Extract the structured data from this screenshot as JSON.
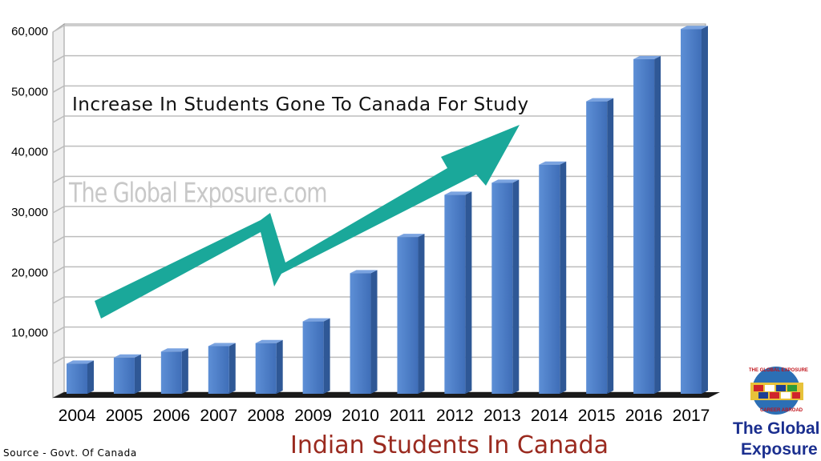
{
  "chart_data": {
    "type": "bar",
    "categories": [
      "2004",
      "2005",
      "2006",
      "2007",
      "2008",
      "2009",
      "2010",
      "2011",
      "2012",
      "2013",
      "2014",
      "2015",
      "2016",
      "2017"
    ],
    "values": [
      5000,
      6000,
      7000,
      7900,
      8400,
      12000,
      20000,
      26000,
      33000,
      35000,
      38000,
      48500,
      55500,
      60500
    ],
    "yticks": [
      "10,000",
      "20,000",
      "30,000",
      "40,000",
      "50,000",
      "60,000"
    ],
    "ylim": [
      0,
      60000
    ],
    "grid": true,
    "title": "Increase In Students Gone To Canada For Study",
    "xlabel": "Indian Students In Canada",
    "ylabel": "",
    "bar_color": "#4a7bc4",
    "arrow_color": "#1aa89a"
  },
  "watermark": "The Global Exposure.com",
  "source": "Source - Govt. Of Canada",
  "brand": {
    "line1": "The Global",
    "line2": "Exposure",
    "logo_text_top": "THE GLOBAL EXPOSURE",
    "logo_text_bottom": "CAREER ABROAD"
  }
}
